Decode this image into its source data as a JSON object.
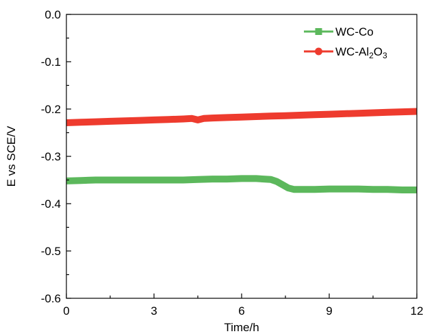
{
  "chart_data": {
    "type": "line",
    "title": "",
    "xlabel": "Time/h",
    "ylabel": "E vs SCE/V",
    "xlim": [
      0,
      12
    ],
    "ylim": [
      -0.6,
      0.0
    ],
    "xticks": [
      0,
      3,
      6,
      9,
      12
    ],
    "yticks": [
      0.0,
      -0.1,
      -0.2,
      -0.3,
      -0.4,
      -0.5,
      -0.6
    ],
    "xtick_labels": [
      "0",
      "3",
      "6",
      "9",
      "12"
    ],
    "ytick_labels": [
      "0.0",
      "-0.1",
      "-0.2",
      "-0.3",
      "-0.4",
      "-0.5",
      "-0.6"
    ],
    "grid": false,
    "legend_position": "top-right",
    "series": [
      {
        "name": "WC-Co",
        "legend_main": "WC-Co",
        "color": "#5cb85c",
        "marker": "square",
        "x": [
          0,
          0.5,
          1,
          1.5,
          2,
          2.5,
          3,
          3.5,
          4,
          4.5,
          5,
          5.5,
          6,
          6.5,
          7,
          7.2,
          7.4,
          7.6,
          7.8,
          8,
          8.5,
          9,
          9.5,
          10,
          10.5,
          11,
          11.5,
          12
        ],
        "y": [
          -0.352,
          -0.351,
          -0.35,
          -0.35,
          -0.35,
          -0.35,
          -0.35,
          -0.35,
          -0.35,
          -0.349,
          -0.348,
          -0.348,
          -0.347,
          -0.347,
          -0.349,
          -0.353,
          -0.36,
          -0.367,
          -0.37,
          -0.37,
          -0.37,
          -0.369,
          -0.369,
          -0.369,
          -0.37,
          -0.37,
          -0.371,
          -0.371
        ]
      },
      {
        "name": "WC-Al2O3",
        "legend_main": "WC-Al",
        "legend_sub1": "2",
        "legend_mid": "O",
        "legend_sub2": "3",
        "color": "#ee3b2e",
        "marker": "circle",
        "x": [
          0,
          0.5,
          1,
          1.5,
          2,
          2.5,
          3,
          3.5,
          4,
          4.3,
          4.5,
          4.7,
          5,
          5.5,
          6,
          6.5,
          7,
          7.5,
          8,
          8.5,
          9,
          9.5,
          10,
          10.5,
          11,
          11.5,
          12
        ],
        "y": [
          -0.229,
          -0.228,
          -0.227,
          -0.226,
          -0.225,
          -0.224,
          -0.223,
          -0.222,
          -0.221,
          -0.22,
          -0.223,
          -0.22,
          -0.219,
          -0.218,
          -0.217,
          -0.216,
          -0.215,
          -0.214,
          -0.213,
          -0.212,
          -0.211,
          -0.21,
          -0.209,
          -0.208,
          -0.207,
          -0.206,
          -0.205
        ]
      }
    ]
  }
}
